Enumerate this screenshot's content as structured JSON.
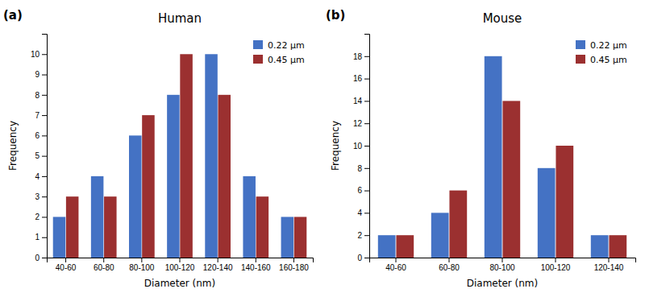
{
  "chart_data": [
    {
      "type": "bar",
      "title": "Human",
      "categories": [
        "40-60",
        "60-80",
        "80-100",
        "100-120",
        "120-140",
        "140-160",
        "160-180"
      ],
      "series": [
        {
          "name": "0.22 μm",
          "color": "#4472C4",
          "values": [
            2,
            4,
            6,
            8,
            10,
            4,
            2
          ]
        },
        {
          "name": "0.45 μm",
          "color": "#9B3030",
          "values": [
            3,
            3,
            7,
            10,
            8,
            3,
            2
          ]
        }
      ],
      "xlabel": "Diameter (nm)",
      "ylabel": "Frequency",
      "ylim": [
        0,
        11
      ],
      "yticks": [
        0,
        1,
        2,
        3,
        4,
        5,
        6,
        7,
        8,
        9,
        10
      ],
      "grid": false,
      "legend": "top-right",
      "annotations": [
        "(a)"
      ]
    },
    {
      "type": "bar",
      "title": "Mouse",
      "categories": [
        "40-60",
        "60-80",
        "80-100",
        "100-120",
        "120-140"
      ],
      "series": [
        {
          "name": "0.22 μm",
          "color": "#4472C4",
          "values": [
            2,
            4,
            18,
            8,
            2
          ]
        },
        {
          "name": "0.45 μm",
          "color": "#9B3030",
          "values": [
            2,
            6,
            14,
            10,
            2
          ]
        }
      ],
      "xlabel": "Diameter (nm)",
      "ylabel": "Frequency",
      "ylim": [
        0,
        20
      ],
      "yticks": [
        0,
        2,
        4,
        6,
        8,
        10,
        12,
        14,
        16,
        18
      ],
      "grid": false,
      "legend": "top-right",
      "annotations": [
        "(b)"
      ]
    }
  ]
}
